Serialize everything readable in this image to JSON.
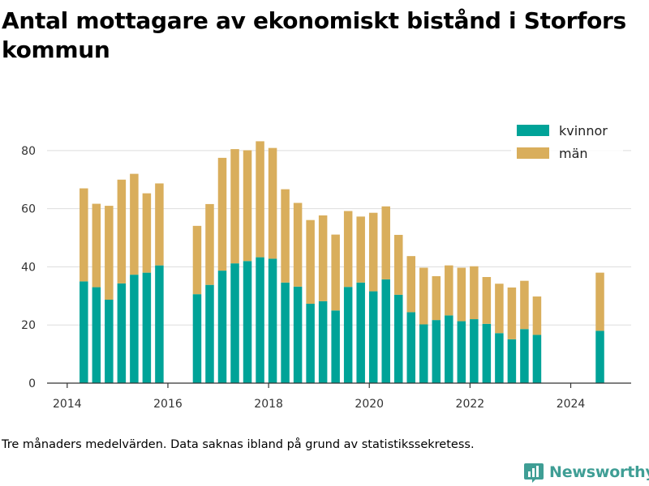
{
  "title": "Antal mottagare av ekonomiskt bistånd i Storfors kommun",
  "footnote": "Tre månaders medelvärden. Data saknas ibland på grund av statistikssekretess.",
  "brand": {
    "name": "Newsworthy",
    "logo_icon": "bar-chart-logo-icon"
  },
  "colors": {
    "kvinnor": "#00a398",
    "man": "#d9ae5c",
    "grid": "#dddddd",
    "axis": "#333333"
  },
  "chart_data": {
    "type": "bar",
    "stacked": true,
    "title": "Antal mottagare av ekonomiskt bistånd i Storfors kommun",
    "xlabel": "",
    "ylabel": "",
    "xlim": [
      2013.6,
      2025.2
    ],
    "ylim": [
      0,
      90
    ],
    "x_ticks": [
      2014,
      2016,
      2018,
      2020,
      2022,
      2024
    ],
    "y_ticks": [
      0,
      20,
      40,
      60,
      80
    ],
    "grid": true,
    "legend_position": "top-right",
    "x": [
      2014.33,
      2014.58,
      2014.83,
      2015.08,
      2015.33,
      2015.58,
      2015.83,
      2016.58,
      2016.83,
      2017.08,
      2017.33,
      2017.58,
      2017.83,
      2018.08,
      2018.33,
      2018.58,
      2018.83,
      2019.08,
      2019.33,
      2019.58,
      2019.83,
      2020.08,
      2020.33,
      2020.58,
      2020.83,
      2021.08,
      2021.33,
      2021.58,
      2021.83,
      2022.08,
      2022.33,
      2022.58,
      2022.83,
      2023.08,
      2023.33,
      2024.58
    ],
    "series": [
      {
        "name": "kvinnor",
        "values": [
          35,
          33,
          28.7,
          34.3,
          37.3,
          38,
          40.5,
          30.6,
          33.8,
          38.7,
          41.2,
          42,
          43.3,
          42.8,
          34.6,
          33.2,
          27.3,
          28.2,
          25,
          33.1,
          34.6,
          31.6,
          35.7,
          30.4,
          24.4,
          20.2,
          21.7,
          23.3,
          21.3,
          22,
          20.4,
          17.2,
          15.1,
          18.6,
          16.6,
          18
        ]
      },
      {
        "name": "män",
        "values": [
          32,
          28.7,
          32.3,
          35.7,
          34.7,
          27.3,
          28.2,
          23.5,
          27.8,
          38.8,
          39.3,
          38.1,
          39.9,
          38.1,
          32.1,
          28.8,
          28.8,
          29.5,
          26.1,
          26.1,
          22.7,
          27,
          25.1,
          20.6,
          19.3,
          19.5,
          15.1,
          17.2,
          18.4,
          18.2,
          16.1,
          17,
          17.8,
          16.6,
          13.2,
          20
        ]
      }
    ]
  }
}
